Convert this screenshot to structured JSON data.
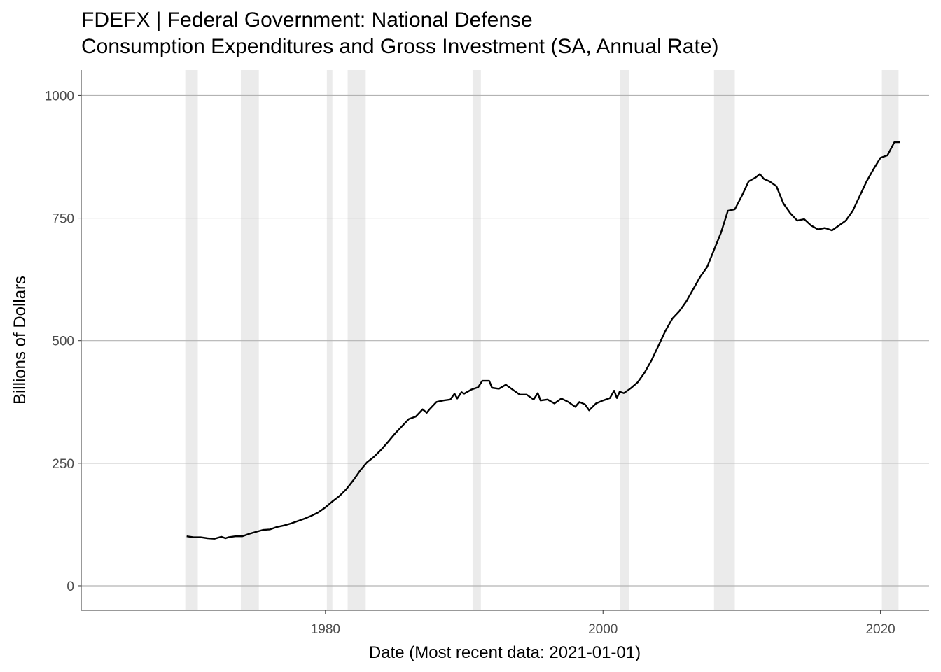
{
  "chart_data": {
    "type": "line",
    "title": "FDEFX | Federal Government: National Defense",
    "subtitle": "Consumption Expenditures and Gross Investment (SA, Annual Rate)",
    "xlabel": "Date (Most recent data: 2021-01-01)",
    "ylabel": "Billions of Dollars",
    "xlim": [
      1962.4,
      2023.5
    ],
    "ylim": [
      -50,
      1052
    ],
    "x_ticks": [
      1980,
      2000,
      2020
    ],
    "x_tick_labels": [
      "1980",
      "2000",
      "2020"
    ],
    "y_ticks": [
      0,
      250,
      500,
      750,
      1000
    ],
    "y_tick_labels": [
      "0",
      "250",
      "500",
      "750",
      "1000"
    ],
    "grid": true,
    "legend": "none",
    "colors": {
      "line": "#000000",
      "recession": "#ebebeb",
      "grid": "#b3b3b3",
      "axis": "#333333"
    },
    "recessions": [
      [
        1969.9,
        1970.8
      ],
      [
        1973.9,
        1975.2
      ],
      [
        1980.1,
        1980.5
      ],
      [
        1981.6,
        1982.9
      ],
      [
        1990.6,
        1991.2
      ],
      [
        2001.2,
        2001.9
      ],
      [
        2008.0,
        2009.5
      ],
      [
        2020.1,
        2021.3
      ]
    ],
    "series": [
      {
        "values": [
          [
            1970.0,
            101
          ],
          [
            1970.5,
            99
          ],
          [
            1971.0,
            99
          ],
          [
            1971.5,
            97
          ],
          [
            1972.0,
            96
          ],
          [
            1972.5,
            100
          ],
          [
            1972.8,
            97
          ],
          [
            1973.0,
            99
          ],
          [
            1973.5,
            101
          ],
          [
            1974.0,
            101
          ],
          [
            1974.5,
            106
          ],
          [
            1975.0,
            110
          ],
          [
            1975.5,
            114
          ],
          [
            1976.0,
            115
          ],
          [
            1976.5,
            120
          ],
          [
            1977.0,
            123
          ],
          [
            1977.5,
            127
          ],
          [
            1978.0,
            132
          ],
          [
            1978.5,
            137
          ],
          [
            1979.0,
            143
          ],
          [
            1979.5,
            150
          ],
          [
            1980.0,
            160
          ],
          [
            1980.5,
            172
          ],
          [
            1981.0,
            183
          ],
          [
            1981.5,
            197
          ],
          [
            1982.0,
            215
          ],
          [
            1982.5,
            235
          ],
          [
            1983.0,
            252
          ],
          [
            1983.5,
            263
          ],
          [
            1984.0,
            277
          ],
          [
            1984.5,
            293
          ],
          [
            1985.0,
            310
          ],
          [
            1985.5,
            325
          ],
          [
            1986.0,
            340
          ],
          [
            1986.5,
            345
          ],
          [
            1987.0,
            360
          ],
          [
            1987.3,
            353
          ],
          [
            1987.5,
            360
          ],
          [
            1988.0,
            375
          ],
          [
            1988.5,
            378
          ],
          [
            1989.0,
            380
          ],
          [
            1989.3,
            392
          ],
          [
            1989.5,
            382
          ],
          [
            1989.8,
            395
          ],
          [
            1990.0,
            392
          ],
          [
            1990.5,
            400
          ],
          [
            1991.0,
            405
          ],
          [
            1991.3,
            418
          ],
          [
            1991.8,
            418
          ],
          [
            1992.0,
            404
          ],
          [
            1992.5,
            402
          ],
          [
            1993.0,
            410
          ],
          [
            1993.5,
            400
          ],
          [
            1994.0,
            390
          ],
          [
            1994.5,
            390
          ],
          [
            1995.0,
            380
          ],
          [
            1995.3,
            393
          ],
          [
            1995.5,
            378
          ],
          [
            1996.0,
            380
          ],
          [
            1996.5,
            372
          ],
          [
            1997.0,
            382
          ],
          [
            1997.5,
            375
          ],
          [
            1998.0,
            365
          ],
          [
            1998.3,
            375
          ],
          [
            1998.7,
            370
          ],
          [
            1999.0,
            358
          ],
          [
            1999.5,
            372
          ],
          [
            2000.0,
            378
          ],
          [
            2000.5,
            383
          ],
          [
            2000.8,
            398
          ],
          [
            2001.0,
            383
          ],
          [
            2001.2,
            396
          ],
          [
            2001.5,
            393
          ],
          [
            2002.0,
            403
          ],
          [
            2002.5,
            415
          ],
          [
            2003.0,
            435
          ],
          [
            2003.5,
            460
          ],
          [
            2004.0,
            490
          ],
          [
            2004.5,
            520
          ],
          [
            2005.0,
            545
          ],
          [
            2005.5,
            560
          ],
          [
            2006.0,
            580
          ],
          [
            2006.5,
            605
          ],
          [
            2007.0,
            630
          ],
          [
            2007.5,
            650
          ],
          [
            2008.0,
            685
          ],
          [
            2008.5,
            720
          ],
          [
            2009.0,
            765
          ],
          [
            2009.5,
            768
          ],
          [
            2010.0,
            795
          ],
          [
            2010.5,
            825
          ],
          [
            2011.0,
            833
          ],
          [
            2011.3,
            840
          ],
          [
            2011.6,
            830
          ],
          [
            2012.0,
            825
          ],
          [
            2012.5,
            815
          ],
          [
            2013.0,
            780
          ],
          [
            2013.5,
            760
          ],
          [
            2014.0,
            745
          ],
          [
            2014.5,
            748
          ],
          [
            2015.0,
            735
          ],
          [
            2015.5,
            727
          ],
          [
            2016.0,
            730
          ],
          [
            2016.5,
            725
          ],
          [
            2017.0,
            735
          ],
          [
            2017.5,
            745
          ],
          [
            2018.0,
            765
          ],
          [
            2018.5,
            795
          ],
          [
            2019.0,
            825
          ],
          [
            2019.5,
            850
          ],
          [
            2020.0,
            873
          ],
          [
            2020.5,
            878
          ],
          [
            2021.0,
            905
          ],
          [
            2021.4,
            905
          ]
        ]
      }
    ]
  }
}
